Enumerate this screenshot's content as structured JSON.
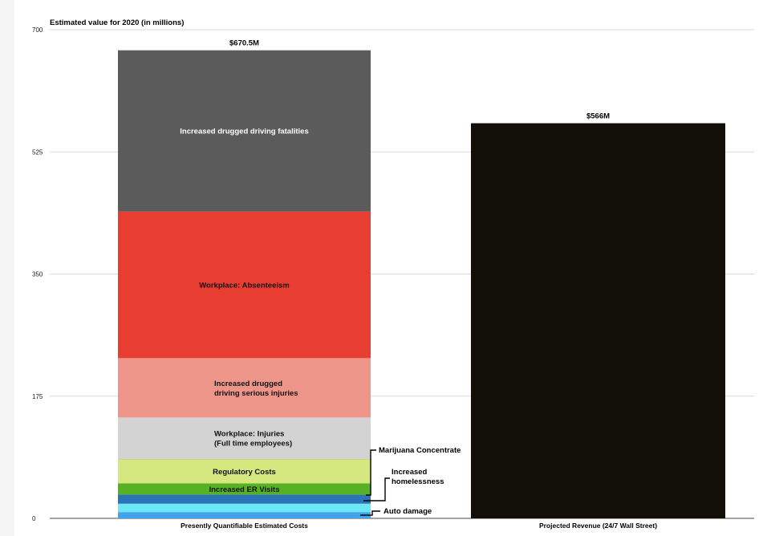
{
  "chart_data": {
    "type": "bar",
    "stacked": true,
    "ylabel": "Estimated value for 2020 (in millions)",
    "ylim": [
      0,
      700
    ],
    "yticks": [
      0,
      175,
      350,
      525,
      700
    ],
    "grid": true,
    "categories": [
      "Presently Quantifiable Estimated Costs",
      "Projected Revenue (24/7 Wall Street)"
    ],
    "totals": [
      "$670.5M",
      "$566M"
    ],
    "series": [
      {
        "name": "Auto damage",
        "category": 0,
        "value": 9,
        "color": "#43a3ea",
        "label_position": "callout"
      },
      {
        "name": "",
        "category": 0,
        "value": 12,
        "color": "#6ae8f3",
        "label_position": "none"
      },
      {
        "name": "Increased homelessness",
        "category": 0,
        "value": 13,
        "color": "#2c74b8",
        "label_position": "callout"
      },
      {
        "name": "Increased ER Visits",
        "category": 0,
        "value": 16,
        "color": "#56b124",
        "label_position": "inside"
      },
      {
        "name": "Regulatory Costs",
        "category": 0,
        "value": 34,
        "color": "#d5e77f",
        "label_position": "inside"
      },
      {
        "name": "Marijuana Concentrate",
        "category": 0,
        "value": 1,
        "color": "#b8d96a",
        "label_position": "callout"
      },
      {
        "name": "Workplace: Injuries\n(Full time employees)",
        "category": 0,
        "value": 59.5,
        "color": "#d3d3d3",
        "label_position": "inside"
      },
      {
        "name": "Increased drugged\ndriving serious injuries",
        "category": 0,
        "value": 85,
        "color": "#ee958a",
        "label_position": "inside"
      },
      {
        "name": "Workplace: Absenteeism",
        "category": 0,
        "value": 210,
        "color": "#e83e32",
        "label_position": "inside"
      },
      {
        "name": "Increased drugged driving fatalities",
        "category": 0,
        "value": 231,
        "color": "#5b5b5b",
        "label_position": "inside",
        "text_color": "#ffffff"
      },
      {
        "name": "",
        "category": 1,
        "value": 566,
        "color": "#121006",
        "label_position": "none"
      }
    ]
  }
}
